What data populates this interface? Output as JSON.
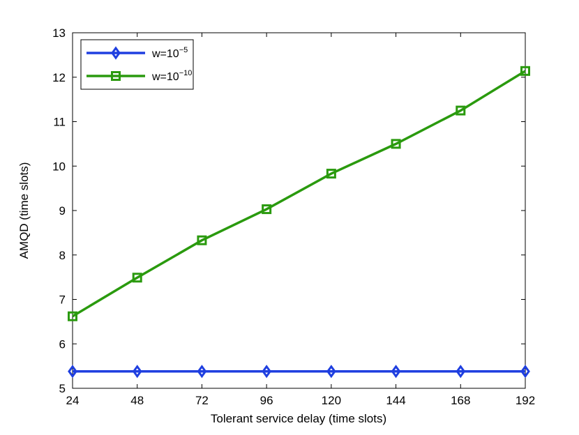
{
  "chart_data": {
    "type": "line",
    "xlabel": "Tolerant service delay (time slots)",
    "ylabel": "AMQD (time slots)",
    "x": [
      24,
      48,
      72,
      96,
      120,
      144,
      168,
      192
    ],
    "xlim": [
      24,
      192
    ],
    "ylim": [
      5,
      13
    ],
    "xticks": [
      "24",
      "48",
      "72",
      "96",
      "120",
      "144",
      "168",
      "192"
    ],
    "yticks": [
      "5",
      "6",
      "7",
      "8",
      "9",
      "10",
      "11",
      "12",
      "13"
    ],
    "grid": false,
    "legend_position": "top-left",
    "series": [
      {
        "name_base": "w=10",
        "name_exp": "−5",
        "color": "#1f3fe0",
        "marker": "diamond",
        "values": [
          5.38,
          5.38,
          5.38,
          5.38,
          5.38,
          5.38,
          5.38,
          5.38
        ]
      },
      {
        "name_base": "w=10",
        "name_exp": "−10",
        "color": "#2a9a0e",
        "marker": "square",
        "values": [
          6.62,
          7.49,
          8.33,
          9.03,
          9.83,
          10.5,
          11.25,
          12.14
        ]
      }
    ]
  }
}
